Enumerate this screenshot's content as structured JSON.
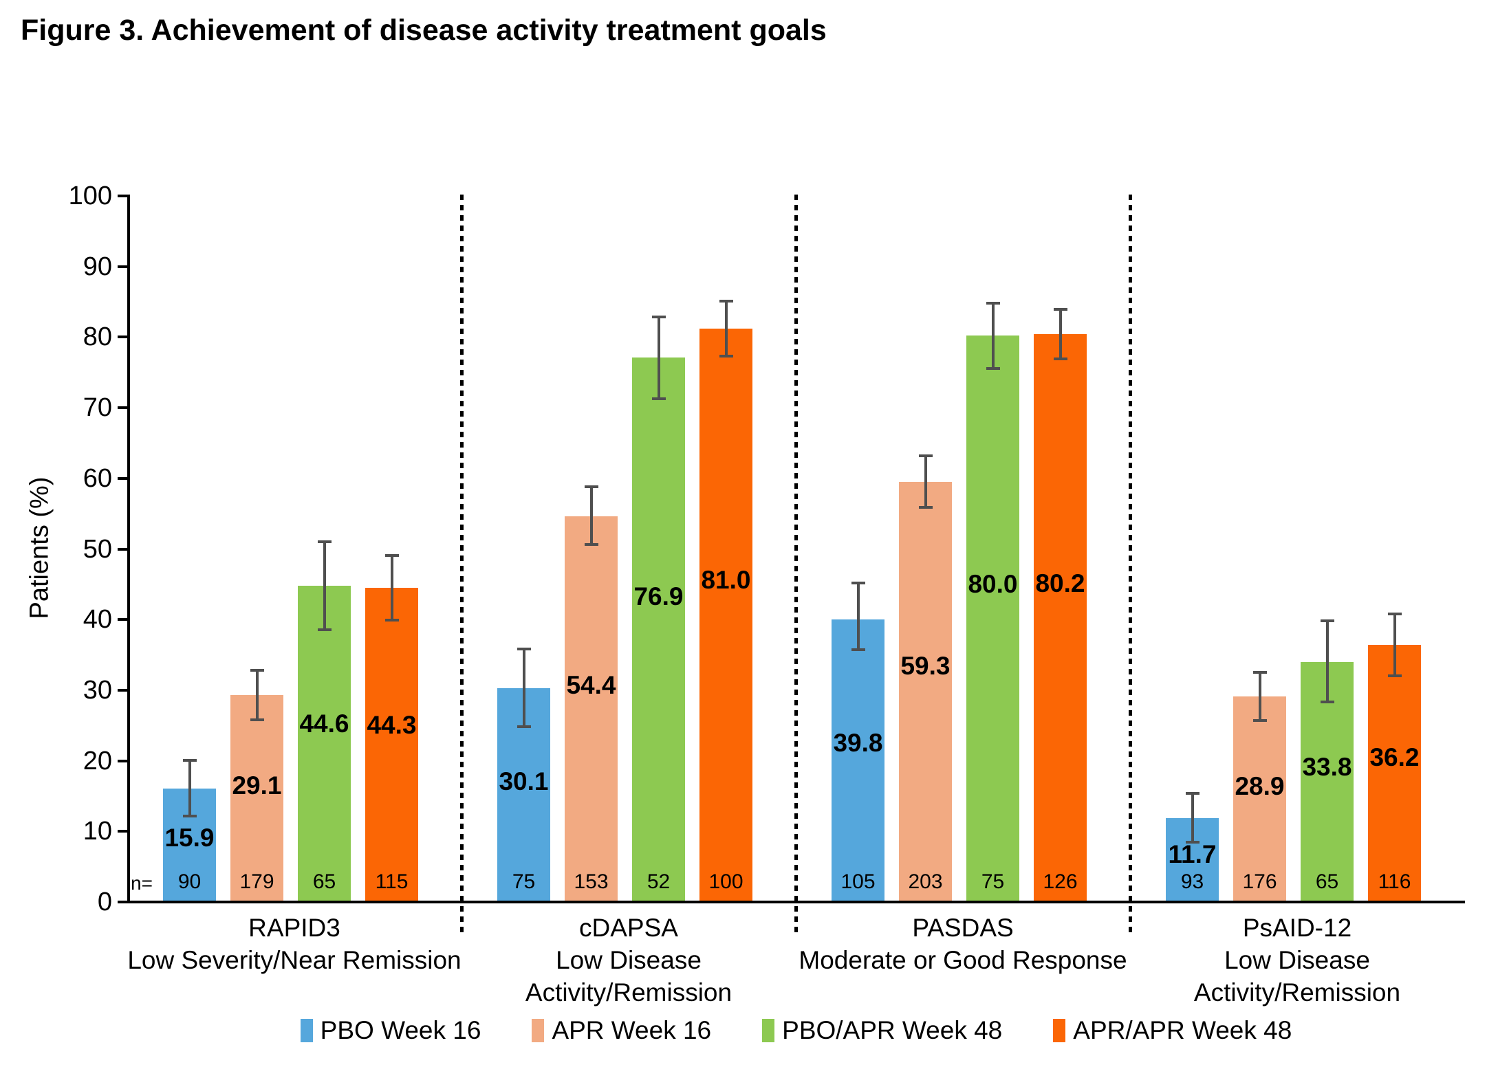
{
  "title": "Figure 3. Achievement of disease activity treatment goals",
  "chart_data": {
    "type": "bar",
    "title": "Figure 3. Achievement of disease activity treatment goals",
    "ylabel": "Patients (%)",
    "ylim": [
      0,
      100
    ],
    "yticks": [
      0,
      10,
      20,
      30,
      40,
      50,
      60,
      70,
      80,
      90,
      100
    ],
    "grid": false,
    "legend_position": "bottom",
    "n_prefix": "n=",
    "error_bar_color": "#4F4F4F",
    "axis_color": "#000000",
    "groups": [
      {
        "name": "RAPID3",
        "subtitle_lines": [
          "Low Severity/Near Remission"
        ]
      },
      {
        "name": "cDAPSA",
        "subtitle_lines": [
          "Low Disease",
          "Activity/Remission"
        ]
      },
      {
        "name": "PASDAS",
        "subtitle_lines": [
          "Moderate or Good Response"
        ]
      },
      {
        "name": "PsAID-12",
        "subtitle_lines": [
          "Low Disease",
          "Activity/Remission"
        ]
      }
    ],
    "series": [
      {
        "name": "PBO Week 16",
        "color": "#55A7DC",
        "values": [
          15.9,
          30.1,
          39.8,
          11.7
        ],
        "err_low": [
          12.0,
          24.6,
          35.5,
          8.3
        ],
        "err_high": [
          19.9,
          35.6,
          45.0,
          15.2
        ],
        "n": [
          90,
          75,
          105,
          93
        ]
      },
      {
        "name": "APR Week 16",
        "color": "#F2AA82",
        "values": [
          29.1,
          54.4,
          59.3,
          28.9
        ],
        "err_low": [
          25.6,
          50.4,
          55.7,
          25.5
        ],
        "err_high": [
          32.6,
          58.6,
          63.0,
          32.3
        ],
        "n": [
          179,
          153,
          203,
          176
        ]
      },
      {
        "name": "PBO/APR Week 48",
        "color": "#8DC951",
        "values": [
          44.6,
          76.9,
          80.0,
          33.8
        ],
        "err_low": [
          38.4,
          71.1,
          75.4,
          28.1
        ],
        "err_high": [
          50.8,
          82.7,
          84.6,
          39.6
        ],
        "n": [
          65,
          52,
          75,
          65
        ]
      },
      {
        "name": "APR/APR Week 48",
        "color": "#FB6605",
        "values": [
          44.3,
          81.0,
          80.2,
          36.2
        ],
        "err_low": [
          39.7,
          77.1,
          76.7,
          31.8
        ],
        "err_high": [
          48.9,
          84.9,
          83.7,
          40.6
        ],
        "n": [
          115,
          100,
          126,
          116
        ]
      }
    ]
  }
}
